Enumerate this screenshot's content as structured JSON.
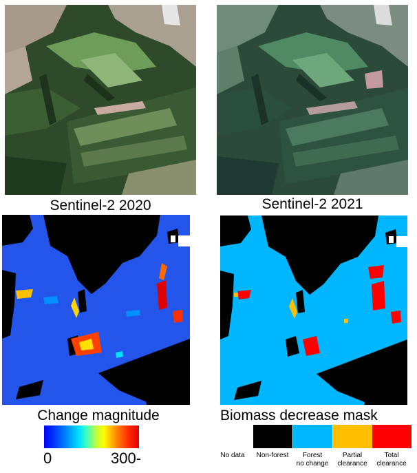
{
  "captions": {
    "s2020": "Sentinel-2 2020",
    "s2021": "Sentinel-2 2021",
    "change": "Change magnitude",
    "mask": "Biomass decrease mask"
  },
  "colorbar": {
    "min_label": "0",
    "max_label": "300-",
    "colors": [
      "#0000ff",
      "#00e0ff",
      "#ffff00",
      "#e00000"
    ]
  },
  "legend": {
    "items": [
      {
        "label_line1": "No data",
        "label_line2": "",
        "color": "#ffffff"
      },
      {
        "label_line1": "Non-forest",
        "label_line2": "",
        "color": "#000000"
      },
      {
        "label_line1": "Forest",
        "label_line2": "no change",
        "color": "#00b7ff"
      },
      {
        "label_line1": "Partial",
        "label_line2": "clearance",
        "color": "#ffbf00"
      },
      {
        "label_line1": "Total",
        "label_line2": "clearance",
        "color": "#ff0000"
      }
    ]
  }
}
